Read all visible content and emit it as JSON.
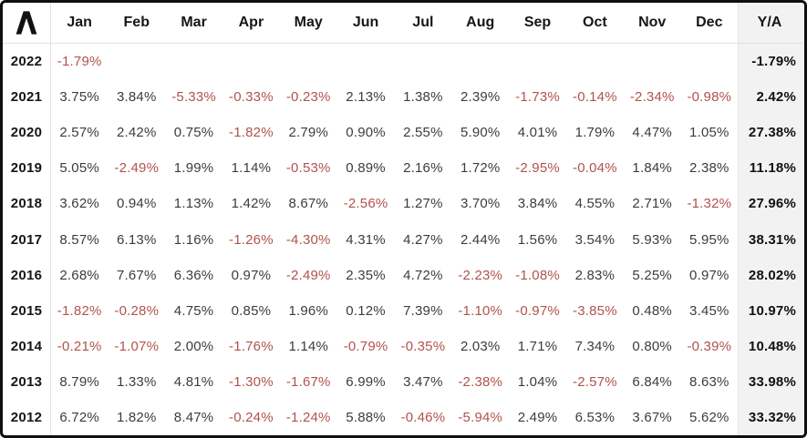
{
  "brand": {
    "logo_icon": "caret-logo"
  },
  "colors": {
    "negative_text": "#b0534e",
    "positive_text": "#3c3c3c",
    "header_text": "#161616",
    "ytd_bg": "#f2f2f2",
    "border": "#0f0f0f"
  },
  "chart_data": {
    "type": "table",
    "columns": [
      "Jan",
      "Feb",
      "Mar",
      "Apr",
      "May",
      "Jun",
      "Jul",
      "Aug",
      "Sep",
      "Oct",
      "Nov",
      "Dec"
    ],
    "ytd_label": "Y/A",
    "rows": [
      {
        "year": "2022",
        "monthly": [
          "-1.79%",
          "",
          "",
          "",
          "",
          "",
          "",
          "",
          "",
          "",
          "",
          ""
        ],
        "ytd": "-1.79%"
      },
      {
        "year": "2021",
        "monthly": [
          "3.75%",
          "3.84%",
          "-5.33%",
          "-0.33%",
          "-0.23%",
          "2.13%",
          "1.38%",
          "2.39%",
          "-1.73%",
          "-0.14%",
          "-2.34%",
          "-0.98%"
        ],
        "ytd": "2.42%"
      },
      {
        "year": "2020",
        "monthly": [
          "2.57%",
          "2.42%",
          "0.75%",
          "-1.82%",
          "2.79%",
          "0.90%",
          "2.55%",
          "5.90%",
          "4.01%",
          "1.79%",
          "4.47%",
          "1.05%"
        ],
        "ytd": "27.38%"
      },
      {
        "year": "2019",
        "monthly": [
          "5.05%",
          "-2.49%",
          "1.99%",
          "1.14%",
          "-0.53%",
          "0.89%",
          "2.16%",
          "1.72%",
          "-2.95%",
          "-0.04%",
          "1.84%",
          "2.38%"
        ],
        "ytd": "11.18%"
      },
      {
        "year": "2018",
        "monthly": [
          "3.62%",
          "0.94%",
          "1.13%",
          "1.42%",
          "8.67%",
          "-2.56%",
          "1.27%",
          "3.70%",
          "3.84%",
          "4.55%",
          "2.71%",
          "-1.32%"
        ],
        "ytd": "27.96%"
      },
      {
        "year": "2017",
        "monthly": [
          "8.57%",
          "6.13%",
          "1.16%",
          "-1.26%",
          "-4.30%",
          "4.31%",
          "4.27%",
          "2.44%",
          "1.56%",
          "3.54%",
          "5.93%",
          "5.95%"
        ],
        "ytd": "38.31%"
      },
      {
        "year": "2016",
        "monthly": [
          "2.68%",
          "7.67%",
          "6.36%",
          "0.97%",
          "-2.49%",
          "2.35%",
          "4.72%",
          "-2.23%",
          "-1.08%",
          "2.83%",
          "5.25%",
          "0.97%"
        ],
        "ytd": "28.02%"
      },
      {
        "year": "2015",
        "monthly": [
          "-1.82%",
          "-0.28%",
          "4.75%",
          "0.85%",
          "1.96%",
          "0.12%",
          "7.39%",
          "-1.10%",
          "-0.97%",
          "-3.85%",
          "0.48%",
          "3.45%"
        ],
        "ytd": "10.97%"
      },
      {
        "year": "2014",
        "monthly": [
          "-0.21%",
          "-1.07%",
          "2.00%",
          "-1.76%",
          "1.14%",
          "-0.79%",
          "-0.35%",
          "2.03%",
          "1.71%",
          "7.34%",
          "0.80%",
          "-0.39%"
        ],
        "ytd": "10.48%"
      },
      {
        "year": "2013",
        "monthly": [
          "8.79%",
          "1.33%",
          "4.81%",
          "-1.30%",
          "-1.67%",
          "6.99%",
          "3.47%",
          "-2.38%",
          "1.04%",
          "-2.57%",
          "6.84%",
          "8.63%"
        ],
        "ytd": "33.98%"
      },
      {
        "year": "2012",
        "monthly": [
          "6.72%",
          "1.82%",
          "8.47%",
          "-0.24%",
          "-1.24%",
          "5.88%",
          "-0.46%",
          "-5.94%",
          "2.49%",
          "6.53%",
          "3.67%",
          "5.62%"
        ],
        "ytd": "33.32%"
      }
    ]
  }
}
